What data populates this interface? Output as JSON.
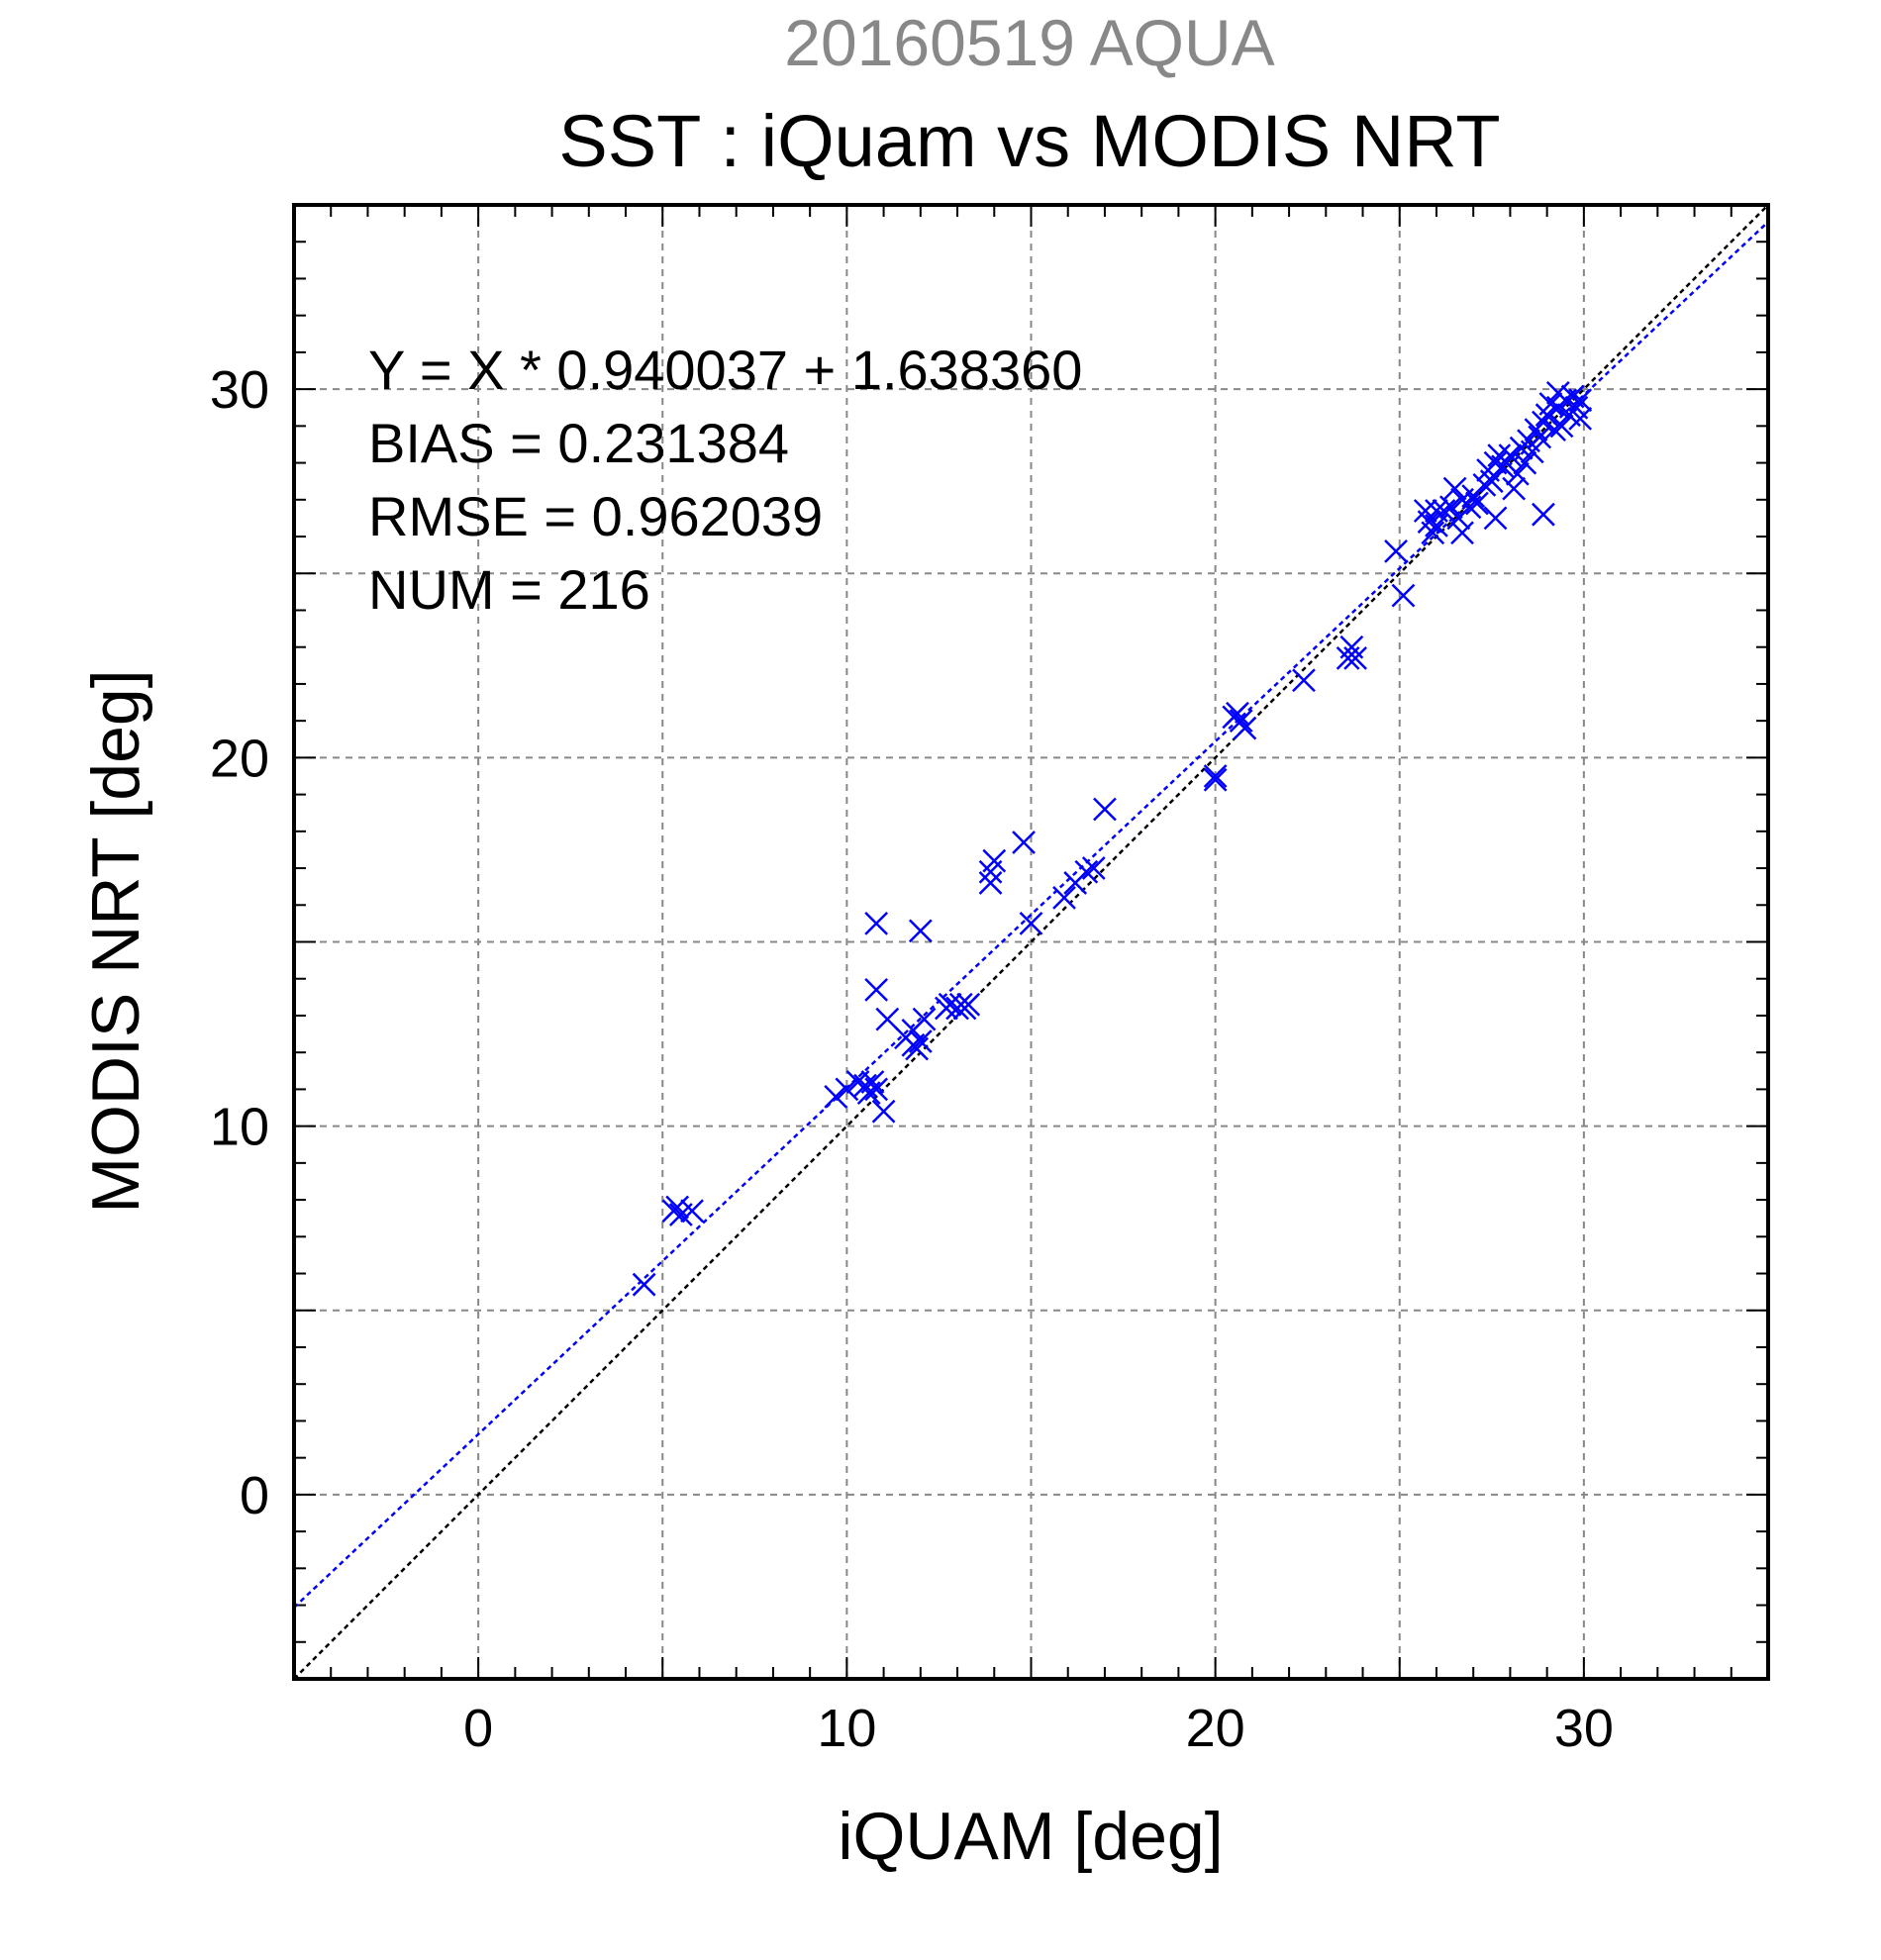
{
  "chart_data": {
    "type": "scatter",
    "supertitle": "20160519 AQUA",
    "title": "SST : iQuam vs MODIS NRT",
    "xlabel": "iQUAM [deg]",
    "ylabel": "MODIS NRT [deg]",
    "xlim": [
      -5,
      35
    ],
    "ylim": [
      -5,
      35
    ],
    "xticks": [
      0,
      10,
      20,
      30
    ],
    "yticks": [
      0,
      10,
      20,
      30
    ],
    "minor_step": 1,
    "grid_step": 5,
    "grid": true,
    "marker": "x",
    "colors": {
      "points": "#0000ff",
      "fit_line": "#0000ff",
      "identity_line": "#000000",
      "grid": "#888888",
      "frame": "#000000"
    },
    "fit": {
      "slope": 0.940037,
      "intercept": 1.63836
    },
    "identity_line": {
      "slope": 1,
      "intercept": 0
    },
    "annotations": [
      "Y = X * 0.940037 + 1.638360",
      "BIAS = 0.231384",
      "RMSE = 0.962039",
      "NUM = 216"
    ],
    "points": [
      [
        4.5,
        5.7
      ],
      [
        5.3,
        7.7
      ],
      [
        5.5,
        7.6
      ],
      [
        5.8,
        7.7
      ],
      [
        5.4,
        7.8
      ],
      [
        9.7,
        10.8
      ],
      [
        10.0,
        11.0
      ],
      [
        10.3,
        11.2
      ],
      [
        10.5,
        11.1
      ],
      [
        10.6,
        10.9
      ],
      [
        10.8,
        11.0
      ],
      [
        10.7,
        11.2
      ],
      [
        11.0,
        10.4
      ],
      [
        10.8,
        15.5
      ],
      [
        10.8,
        13.7
      ],
      [
        11.1,
        12.9
      ],
      [
        11.6,
        12.4
      ],
      [
        11.8,
        12.6
      ],
      [
        11.8,
        12.2
      ],
      [
        11.9,
        12.1
      ],
      [
        12.0,
        12.3
      ],
      [
        12.1,
        12.9
      ],
      [
        12.0,
        15.3
      ],
      [
        12.7,
        13.2
      ],
      [
        12.8,
        13.3
      ],
      [
        13.0,
        13.2
      ],
      [
        13.1,
        13.3
      ],
      [
        13.2,
        13.2
      ],
      [
        13.3,
        13.3
      ],
      [
        13.9,
        16.9
      ],
      [
        13.9,
        16.6
      ],
      [
        14.0,
        17.2
      ],
      [
        14.8,
        17.7
      ],
      [
        15.0,
        15.5
      ],
      [
        15.9,
        16.2
      ],
      [
        16.2,
        16.6
      ],
      [
        16.5,
        16.9
      ],
      [
        16.7,
        17.0
      ],
      [
        17.0,
        18.6
      ],
      [
        20.0,
        19.5
      ],
      [
        20.0,
        19.4
      ],
      [
        20.5,
        21.1
      ],
      [
        20.6,
        21.2
      ],
      [
        20.8,
        20.8
      ],
      [
        20.7,
        21.0
      ],
      [
        22.4,
        22.1
      ],
      [
        23.6,
        22.7
      ],
      [
        23.7,
        23.0
      ],
      [
        23.8,
        22.7
      ],
      [
        24.9,
        25.6
      ],
      [
        25.1,
        24.4
      ],
      [
        25.7,
        26.7
      ],
      [
        25.8,
        26.4
      ],
      [
        25.9,
        26.1
      ],
      [
        26.0,
        26.7
      ],
      [
        26.0,
        26.3
      ],
      [
        26.2,
        26.7
      ],
      [
        26.4,
        26.8
      ],
      [
        26.5,
        27.3
      ],
      [
        26.6,
        26.5
      ],
      [
        26.7,
        26.1
      ],
      [
        26.7,
        27.0
      ],
      [
        26.9,
        26.8
      ],
      [
        27.0,
        27.1
      ],
      [
        27.1,
        26.9
      ],
      [
        27.3,
        27.4
      ],
      [
        27.4,
        27.8
      ],
      [
        27.5,
        27.5
      ],
      [
        27.6,
        28.0
      ],
      [
        27.6,
        26.5
      ],
      [
        27.7,
        28.2
      ],
      [
        27.8,
        27.9
      ],
      [
        27.9,
        28.0
      ],
      [
        28.0,
        28.2
      ],
      [
        28.1,
        27.3
      ],
      [
        28.2,
        27.7
      ],
      [
        28.3,
        28.4
      ],
      [
        28.4,
        28.0
      ],
      [
        28.5,
        28.6
      ],
      [
        28.6,
        28.3
      ],
      [
        28.7,
        28.9
      ],
      [
        28.8,
        28.7
      ],
      [
        28.9,
        29.1
      ],
      [
        28.9,
        26.6
      ],
      [
        29.0,
        29.3
      ],
      [
        29.1,
        29.6
      ],
      [
        29.2,
        28.9
      ],
      [
        29.3,
        29.5
      ],
      [
        29.3,
        29.9
      ],
      [
        29.4,
        29.0
      ],
      [
        29.5,
        29.7
      ],
      [
        29.6,
        29.3
      ],
      [
        29.7,
        29.8
      ],
      [
        29.8,
        29.5
      ],
      [
        29.9,
        29.2
      ],
      [
        29.9,
        29.7
      ]
    ]
  }
}
